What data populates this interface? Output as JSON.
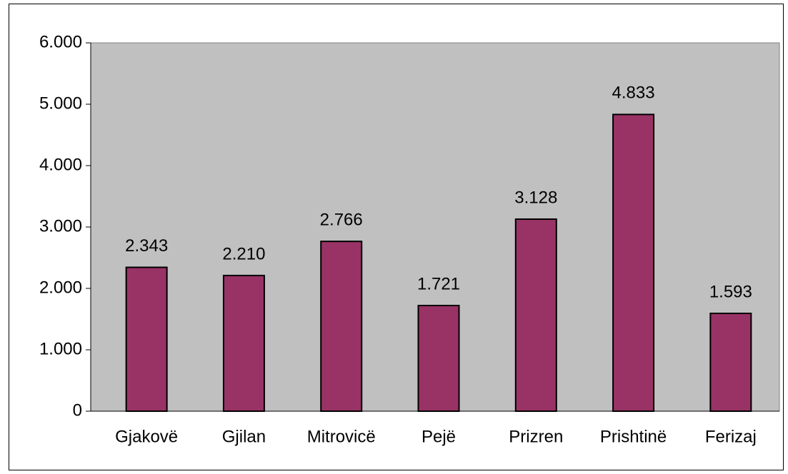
{
  "chart_data": {
    "type": "bar",
    "categories": [
      "Gjakovë",
      "Gjilan",
      "Mitrovicë",
      "Pejë",
      "Prizren",
      "Prishtinë",
      "Ferizaj"
    ],
    "values": [
      2343,
      2210,
      2766,
      1721,
      3128,
      4833,
      1593
    ],
    "value_labels": [
      "2.343",
      "2.210",
      "2.766",
      "1.721",
      "3.128",
      "4.833",
      "1.593"
    ],
    "color": "#993366",
    "ylim": [
      0,
      6000
    ],
    "yticks": [
      0,
      {
        "value": 1000,
        "label": "1.000"
      },
      {
        "value": 2000,
        "label": "2.000"
      },
      {
        "value": 3000,
        "label": "3.000"
      },
      {
        "value": 4000,
        "label": "4.000"
      },
      {
        "value": 5000,
        "label": "5.000"
      },
      {
        "value": 6000,
        "label": "6.000"
      }
    ],
    "grid": false
  }
}
